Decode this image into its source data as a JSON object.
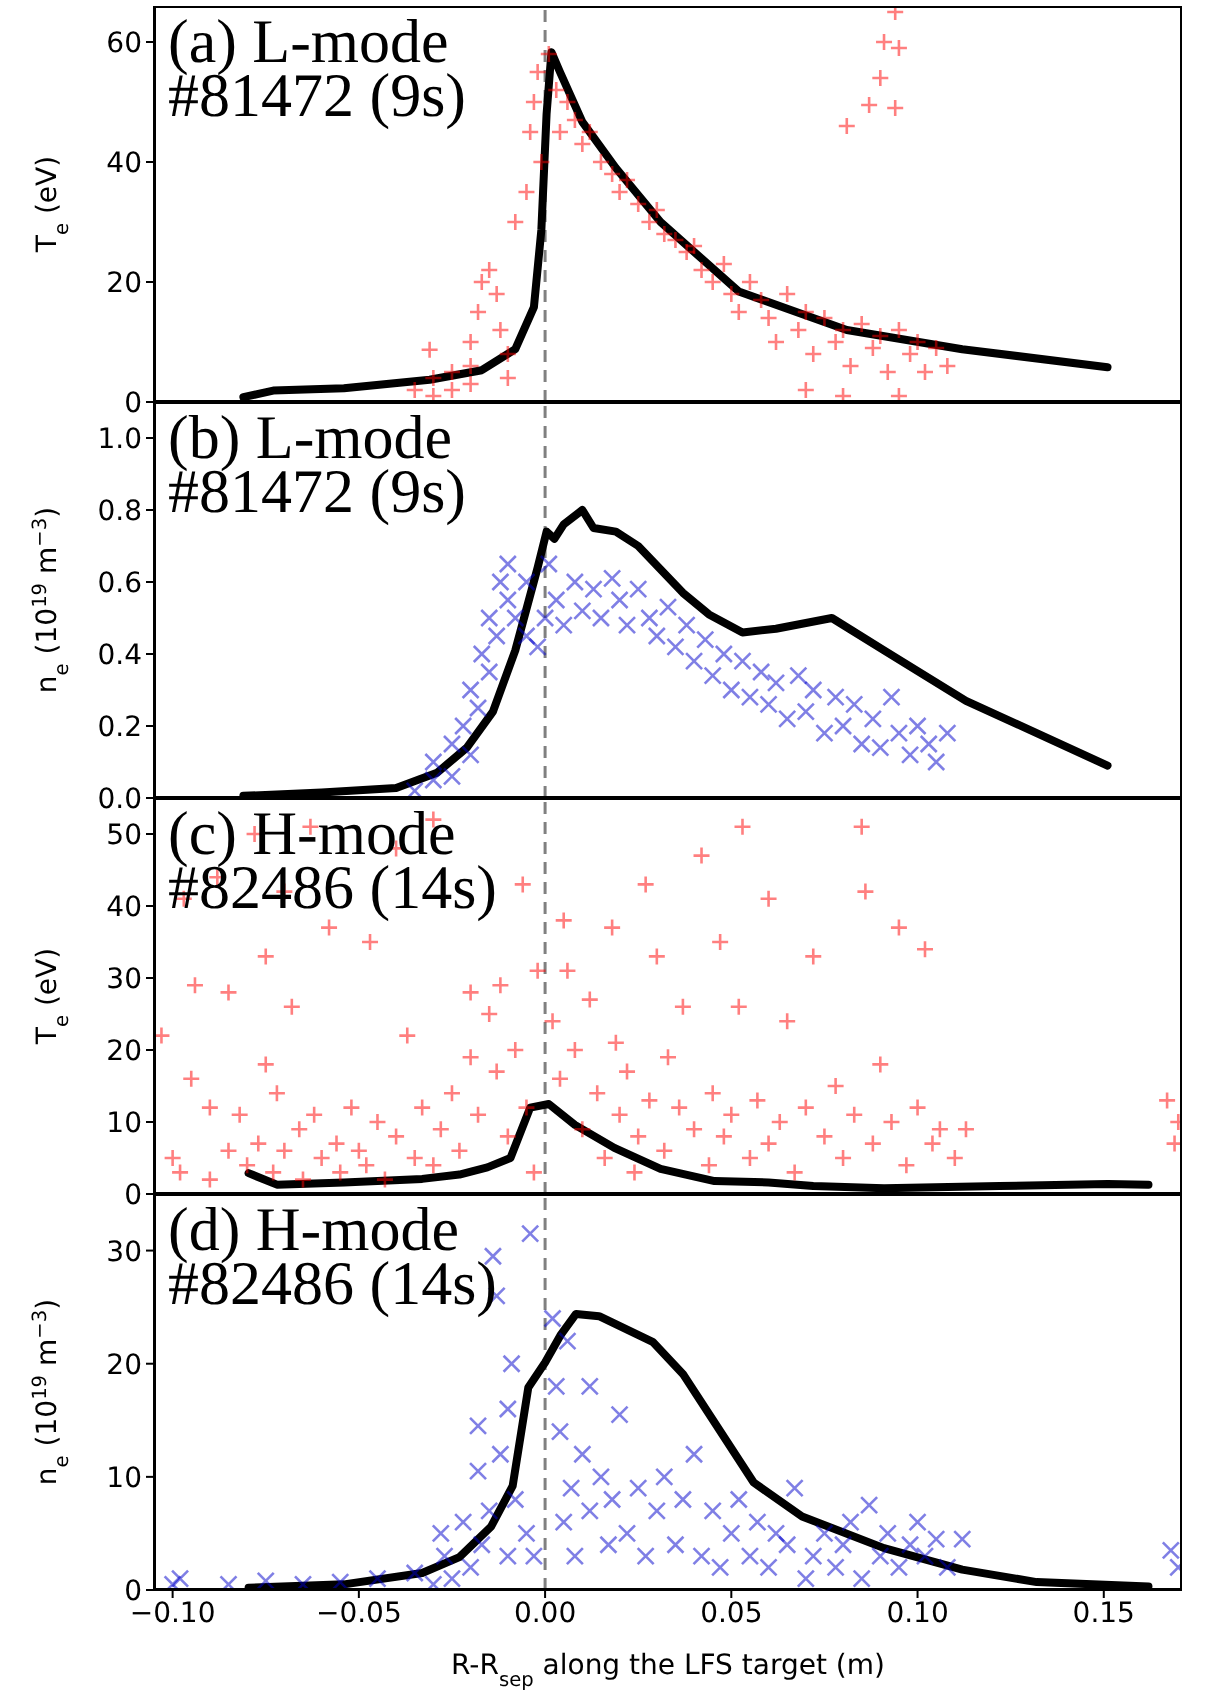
{
  "chart_data": [
    {
      "type": "scatter",
      "ylabel": "T$_{e}$ (eV)",
      "annotations": [
        "(a) L-mode",
        "#81472 (9s)"
      ],
      "xlim": [
        -0.105,
        0.171
      ],
      "xticks": [
        {
          "value": -0.1,
          "label": null
        },
        {
          "value": -0.05,
          "label": null
        },
        {
          "value": 0,
          "label": null
        },
        {
          "value": 0.05,
          "label": null
        },
        {
          "value": 0.1,
          "label": null
        },
        {
          "value": 0.15,
          "label": null
        }
      ],
      "ylim": [
        0,
        66
      ],
      "yticks": [
        0,
        20,
        40,
        60
      ],
      "tick_labels": "y",
      "ref_lines": [
        {
          "axis": "x",
          "value": 0,
          "color": "#808080",
          "line_style": "dashed"
        }
      ],
      "series": [
        {
          "type": "scatter",
          "marker": "cross",
          "color": "#ff0000",
          "x": [
            -0.035,
            -0.03,
            -0.03,
            -0.025,
            -0.025,
            -0.02,
            -0.02,
            -0.02,
            -0.018,
            -0.017,
            -0.015,
            -0.013,
            -0.012,
            -0.01,
            -0.01,
            -0.008,
            -0.005,
            -0.004,
            -0.003,
            -0.002,
            -0.001,
            0.001,
            0.003,
            0.004,
            0.006,
            0.008,
            0.01,
            0.012,
            0.015,
            0.018,
            0.02,
            0.022,
            0.025,
            0.028,
            0.03,
            0.032,
            0.035,
            0.038,
            0.04,
            0.042,
            0.045,
            0.048,
            0.05,
            0.052,
            0.055,
            0.058,
            0.06,
            0.062,
            0.065,
            0.068,
            0.07,
            0.072,
            0.075,
            0.078,
            0.08,
            0.082,
            0.085,
            0.088,
            0.09,
            0.092,
            0.095,
            0.098,
            0.1,
            0.102,
            0.105,
            0.108,
            0.07,
            0.08,
            0.095,
            -0.031,
            0.081,
            0.087,
            0.09,
            0.091,
            0.094,
            0.095,
            0.094
          ],
          "values": [
            2,
            1,
            4,
            2,
            5,
            3,
            6,
            10,
            15,
            20,
            22,
            18,
            12,
            8,
            4,
            30,
            35,
            45,
            50,
            55,
            40,
            58,
            52,
            45,
            50,
            47,
            43,
            45,
            40,
            38,
            35,
            37,
            33,
            30,
            32,
            28,
            27,
            25,
            26,
            22,
            20,
            23,
            18,
            15,
            20,
            17,
            14,
            10,
            18,
            12,
            15,
            8,
            14,
            10,
            12,
            6,
            13,
            9,
            11,
            5,
            12,
            8,
            10,
            5,
            9,
            6,
            2,
            1,
            1,
            8.7,
            46,
            49.5,
            54,
            60,
            65,
            59,
            49
          ]
        },
        {
          "type": "line",
          "marker": "none",
          "line_style": "solid",
          "color": "#000000",
          "x": [
            -0.081,
            -0.073,
            -0.054,
            -0.031,
            -0.017,
            -0.008,
            -0.003,
            -0.001,
            0.0004,
            0.0017,
            0.004,
            0.01,
            0.019,
            0.031,
            0.052,
            0.081,
            0.112,
            0.151
          ],
          "values": [
            0.8,
            1.9,
            2.3,
            3.7,
            5.3,
            8.8,
            15.8,
            28.7,
            48,
            58.3,
            55,
            46.7,
            39,
            30,
            18.4,
            12,
            8.8,
            5.8
          ]
        }
      ]
    },
    {
      "type": "scatter",
      "ylabel": "n$_{e}$ (10$^{19}$ m$^{−3}$)",
      "annotations": [
        "(b) L-mode",
        "#81472 (9s)"
      ],
      "xlim": [
        -0.105,
        0.171
      ],
      "xticks": [
        {
          "value": -0.1,
          "label": null
        },
        {
          "value": -0.05,
          "label": null
        },
        {
          "value": 0,
          "label": null
        },
        {
          "value": 0.05,
          "label": null
        },
        {
          "value": 0.1,
          "label": null
        },
        {
          "value": 0.15,
          "label": null
        }
      ],
      "ylim": [
        0,
        1.1
      ],
      "yticks": [
        {
          "value": 0,
          "label": "0.0"
        },
        0.2,
        0.4,
        0.6,
        0.8,
        {
          "value": 1,
          "label": "1.0"
        }
      ],
      "tick_labels": "y",
      "ref_lines": [
        {
          "axis": "x",
          "value": 0,
          "color": "#808080",
          "line_style": "dashed"
        }
      ],
      "series": [
        {
          "type": "scatter",
          "marker": "x",
          "color": "#0000cc",
          "x": [
            -0.035,
            -0.03,
            -0.03,
            -0.025,
            -0.025,
            -0.022,
            -0.02,
            -0.02,
            -0.018,
            -0.017,
            -0.015,
            -0.015,
            -0.013,
            -0.012,
            -0.01,
            -0.01,
            -0.008,
            -0.005,
            -0.005,
            -0.002,
            0,
            0.001,
            0.003,
            0.005,
            0.008,
            0.01,
            0.013,
            0.015,
            0.018,
            0.02,
            0.022,
            0.025,
            0.028,
            0.03,
            0.033,
            0.035,
            0.038,
            0.04,
            0.043,
            0.045,
            0.048,
            0.05,
            0.053,
            0.055,
            0.058,
            0.06,
            0.062,
            0.065,
            0.068,
            0.07,
            0.072,
            0.075,
            0.078,
            0.08,
            0.083,
            0.085,
            0.088,
            0.09,
            0.093,
            0.095,
            0.098,
            0.1,
            0.103,
            0.105,
            0.108
          ],
          "values": [
            0.02,
            0.05,
            0.1,
            0.06,
            0.15,
            0.2,
            0.12,
            0.3,
            0.25,
            0.4,
            0.35,
            0.5,
            0.45,
            0.6,
            0.55,
            0.65,
            0.5,
            0.45,
            0.6,
            0.42,
            0.5,
            0.65,
            0.55,
            0.48,
            0.6,
            0.52,
            0.58,
            0.5,
            0.61,
            0.55,
            0.48,
            0.58,
            0.5,
            0.45,
            0.53,
            0.42,
            0.48,
            0.38,
            0.44,
            0.34,
            0.4,
            0.3,
            0.38,
            0.28,
            0.35,
            0.26,
            0.32,
            0.22,
            0.34,
            0.24,
            0.3,
            0.18,
            0.28,
            0.2,
            0.26,
            0.15,
            0.22,
            0.14,
            0.28,
            0.18,
            0.12,
            0.2,
            0.15,
            0.1,
            0.18
          ]
        },
        {
          "type": "line",
          "marker": "none",
          "line_style": "solid",
          "color": "#000000",
          "x": [
            -0.081,
            -0.06,
            -0.04,
            -0.029,
            -0.021,
            -0.014,
            -0.008,
            -0.002,
            0.0004,
            0.0025,
            0.005,
            0.01,
            0.013,
            0.019,
            0.025,
            0.037,
            0.044,
            0.053,
            0.062,
            0.077,
            0.091,
            0.113,
            0.151
          ],
          "values": [
            0.006,
            0.015,
            0.028,
            0.07,
            0.14,
            0.24,
            0.41,
            0.64,
            0.74,
            0.72,
            0.76,
            0.8,
            0.75,
            0.74,
            0.7,
            0.57,
            0.51,
            0.46,
            0.47,
            0.5,
            0.41,
            0.27,
            0.09
          ]
        }
      ]
    },
    {
      "type": "scatter",
      "ylabel": "T$_{e}$ (eV)",
      "annotations": [
        "(c) H-mode",
        "#82486 (14s)"
      ],
      "xlim": [
        -0.105,
        0.171
      ],
      "xticks": [
        {
          "value": -0.1,
          "label": null
        },
        {
          "value": -0.05,
          "label": null
        },
        {
          "value": 0,
          "label": null
        },
        {
          "value": 0.05,
          "label": null
        },
        {
          "value": 0.1,
          "label": null
        },
        {
          "value": 0.15,
          "label": null
        }
      ],
      "ylim": [
        0,
        55
      ],
      "yticks": [
        0,
        10,
        20,
        30,
        40,
        50
      ],
      "tick_labels": "y",
      "ref_lines": [
        {
          "axis": "x",
          "value": 0,
          "color": "#808080",
          "line_style": "dashed"
        }
      ],
      "series": [
        {
          "type": "scatter",
          "marker": "cross",
          "color": "#ff0000",
          "x": [
            -0.103,
            -0.1,
            -0.098,
            -0.097,
            -0.095,
            -0.094,
            -0.09,
            -0.09,
            -0.088,
            -0.085,
            -0.085,
            -0.082,
            -0.08,
            -0.078,
            -0.077,
            -0.075,
            -0.075,
            -0.073,
            -0.072,
            -0.07,
            -0.07,
            -0.068,
            -0.066,
            -0.065,
            -0.063,
            -0.062,
            -0.06,
            -0.058,
            -0.056,
            -0.055,
            -0.052,
            -0.05,
            -0.048,
            -0.047,
            -0.045,
            -0.043,
            -0.04,
            -0.04,
            -0.037,
            -0.035,
            -0.033,
            -0.03,
            -0.03,
            -0.028,
            -0.025,
            -0.023,
            -0.02,
            -0.02,
            -0.018,
            -0.015,
            -0.013,
            -0.012,
            -0.01,
            -0.008,
            -0.006,
            -0.005,
            -0.003,
            -0.002,
            0.002,
            0.004,
            0.005,
            0.006,
            0.008,
            0.01,
            0.012,
            0.014,
            0.016,
            0.018,
            0.019,
            0.02,
            0.022,
            0.024,
            0.025,
            0.027,
            0.028,
            0.03,
            0.032,
            0.033,
            0.036,
            0.037,
            0.04,
            0.042,
            0.044,
            0.045,
            0.047,
            0.048,
            0.05,
            0.052,
            0.053,
            0.055,
            0.057,
            0.06,
            0.06,
            0.063,
            0.065,
            0.067,
            0.07,
            0.072,
            0.075,
            0.078,
            0.08,
            0.083,
            0.085,
            0.086,
            0.088,
            0.09,
            0.093,
            0.095,
            0.097,
            0.1,
            0.102,
            0.104,
            0.106,
            0.11,
            0.113,
            0.167,
            0.169,
            0.17
          ],
          "values": [
            22,
            5,
            3,
            41,
            16,
            29,
            12,
            2,
            44,
            28,
            6,
            11,
            4,
            50,
            7,
            33,
            18,
            3,
            14,
            42,
            6,
            26,
            9,
            2,
            51,
            11,
            5,
            37,
            7,
            3,
            12,
            6,
            4,
            35,
            10,
            2,
            8,
            48,
            22,
            5,
            12,
            4,
            52,
            9,
            14,
            6,
            19,
            28,
            11,
            25,
            17,
            29,
            8,
            20,
            43,
            12,
            3,
            31,
            24,
            16,
            38,
            31,
            20,
            9,
            27,
            14,
            5,
            37,
            21,
            11,
            17,
            3,
            8,
            43,
            13,
            33,
            6,
            19,
            12,
            26,
            9,
            47,
            4,
            14,
            35,
            8,
            11,
            26,
            51,
            5,
            13,
            41,
            7,
            10,
            24,
            3,
            12,
            33,
            8,
            15,
            5,
            11,
            51,
            42,
            7,
            18,
            10,
            37,
            4,
            12,
            34,
            7,
            9,
            5,
            9,
            13,
            7,
            10
          ]
        },
        {
          "type": "line",
          "marker": "none",
          "line_style": "solid",
          "color": "#000000",
          "x": [
            -0.0796,
            -0.072,
            -0.054,
            -0.033,
            -0.023,
            -0.0155,
            -0.0093,
            -0.004,
            0.001,
            0.008,
            0.0186,
            0.031,
            0.0455,
            0.06,
            0.072,
            0.091,
            0.122,
            0.151,
            0.162
          ],
          "values": [
            2.9,
            1.3,
            1.6,
            2.1,
            2.7,
            3.7,
            5,
            12,
            12.5,
            9.6,
            6.4,
            3.5,
            1.8,
            1.6,
            1.1,
            0.8,
            1.1,
            1.4,
            1.3
          ]
        }
      ]
    },
    {
      "type": "scatter",
      "ylabel": "n$_{e}$ (10$^{19}$ m$^{−3}$)",
      "xlabel": "R-R$_{sep}$ along the LFS target (m)",
      "annotations": [
        "(d) H-mode",
        "#82486 (14s)"
      ],
      "xlim": [
        -0.105,
        0.171
      ],
      "xticks": [
        {
          "value": -0.1,
          "label": "−0.10"
        },
        {
          "value": -0.05,
          "label": "−0.05"
        },
        {
          "value": 0,
          "label": "0.00"
        },
        {
          "value": 0.05,
          "label": "0.05"
        },
        {
          "value": 0.1,
          "label": "0.10"
        },
        {
          "value": 0.15,
          "label": "0.15"
        }
      ],
      "ylim": [
        0,
        35
      ],
      "yticks": [
        0,
        10,
        20,
        30
      ],
      "ref_lines": [
        {
          "axis": "x",
          "value": 0,
          "color": "#808080",
          "line_style": "dashed"
        }
      ],
      "series": [
        {
          "type": "scatter",
          "marker": "x",
          "color": "#0000cc",
          "x": [
            -0.1,
            -0.098,
            -0.085,
            -0.075,
            -0.065,
            -0.055,
            -0.045,
            -0.035,
            -0.03,
            -0.028,
            -0.027,
            -0.025,
            -0.022,
            -0.02,
            -0.018,
            -0.018,
            -0.017,
            -0.015,
            -0.014,
            -0.013,
            -0.012,
            -0.01,
            -0.01,
            -0.009,
            -0.008,
            -0.005,
            -0.004,
            -0.003,
            0.002,
            0.003,
            0.004,
            0.005,
            0.006,
            0.007,
            0.008,
            0.01,
            0.012,
            0.012,
            0.015,
            0.017,
            0.018,
            0.02,
            0.022,
            0.025,
            0.027,
            0.03,
            0.032,
            0.035,
            0.037,
            0.04,
            0.042,
            0.045,
            0.047,
            0.05,
            0.052,
            0.055,
            0.057,
            0.06,
            0.062,
            0.065,
            0.067,
            0.07,
            0.072,
            0.075,
            0.078,
            0.08,
            0.082,
            0.085,
            0.087,
            0.09,
            0.092,
            0.095,
            0.098,
            0.1,
            0.102,
            0.105,
            0.108,
            0.112,
            0.168,
            0.17
          ],
          "values": [
            0.5,
            1,
            0.5,
            0.8,
            0.5,
            0.7,
            1,
            1.5,
            0.5,
            5,
            3,
            1,
            6,
            2,
            14.5,
            10.5,
            4,
            7,
            29.5,
            26,
            12,
            3,
            16,
            20,
            8,
            5,
            31.5,
            3,
            24,
            18,
            14,
            6,
            22,
            9,
            3,
            12,
            18,
            7,
            10,
            4,
            8,
            15.5,
            5,
            9,
            3,
            7,
            10,
            4,
            8,
            12,
            3,
            7,
            2,
            5,
            8,
            3,
            6,
            2,
            5,
            4,
            9,
            1,
            3,
            5,
            2,
            4,
            6,
            1,
            7.5,
            3,
            5,
            2,
            4,
            6,
            3,
            4.5,
            2,
            4.5,
            3.5,
            2
          ]
        },
        {
          "type": "line",
          "marker": "none",
          "line_style": "solid",
          "color": "#000000",
          "x": [
            -0.0796,
            -0.054,
            -0.033,
            -0.023,
            -0.0145,
            -0.0087,
            -0.0045,
            0,
            0.0041,
            0.0083,
            0.0145,
            0.029,
            0.037,
            0.056,
            0.069,
            0.091,
            0.112,
            0.132,
            0.162
          ],
          "values": [
            0.2,
            0.5,
            1.5,
            2.9,
            5.6,
            9.2,
            17.9,
            20.1,
            22.5,
            24.4,
            24.2,
            21.9,
            19.1,
            9.5,
            6.5,
            3.7,
            1.8,
            0.7,
            0.3
          ]
        }
      ]
    }
  ]
}
